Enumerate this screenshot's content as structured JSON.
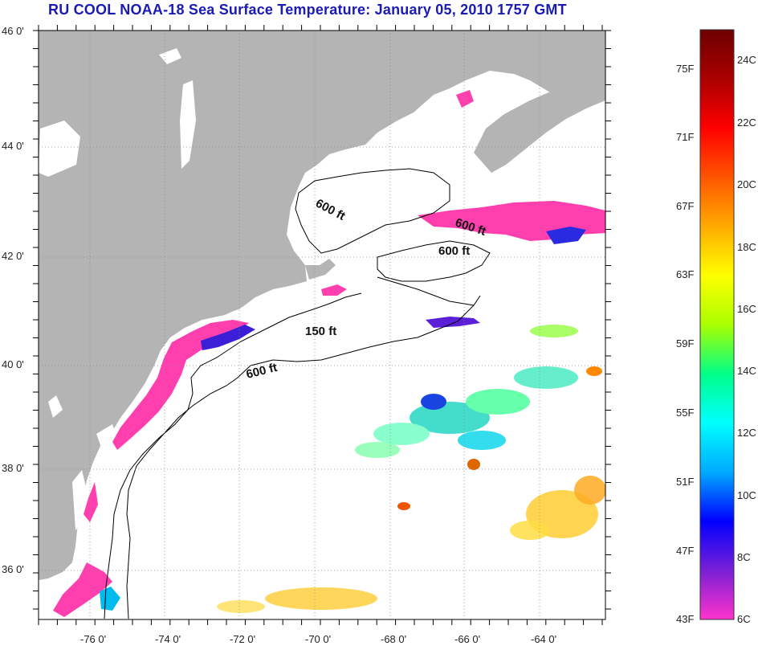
{
  "title": "RU COOL  NOAA-18  Sea Surface Temperature:  January 05, 2010 1757 GMT",
  "axes": {
    "lat_labels": [
      "46 0'",
      "44 0'",
      "42 0'",
      "40 0'",
      "38 0'",
      "36 0'"
    ],
    "lon_labels": [
      "-76 0'",
      "-74 0'",
      "-72 0'",
      "-70 0'",
      "-68 0'",
      "-66 0'",
      "-64 0'"
    ]
  },
  "contours": {
    "labels": [
      "600 ft",
      "600 ft",
      "600 ft",
      "150 ft",
      "600 ft"
    ]
  },
  "colorbar": {
    "fahrenheit_labels": [
      "75F",
      "71F",
      "67F",
      "63F",
      "59F",
      "55F",
      "51F",
      "47F",
      "43F"
    ],
    "celsius_labels": [
      "24C",
      "22C",
      "20C",
      "18C",
      "16C",
      "14C",
      "12C",
      "10C",
      "8C",
      "6C"
    ],
    "colors": [
      "#ff33cc",
      "#7a1fd6",
      "#0000ff",
      "#00aaff",
      "#00ffff",
      "#00ff88",
      "#aaff00",
      "#ffff00",
      "#ffaa00",
      "#ff5500",
      "#ff0000",
      "#aa0000",
      "#6e0000"
    ]
  },
  "colors": {
    "land": "#b4b4b4",
    "ocean": "#ffffff",
    "cold_water": "#ff3fae",
    "title": "#1a1ab4"
  }
}
